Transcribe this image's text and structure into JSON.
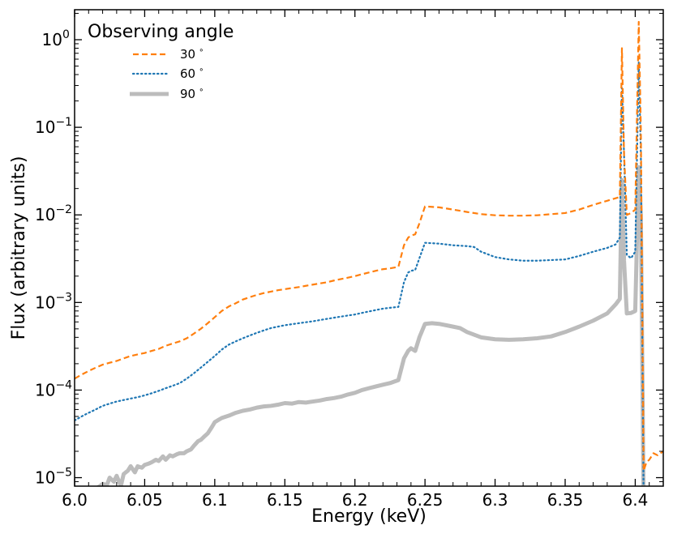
{
  "chart_data": {
    "type": "line",
    "title": "",
    "xlabel": "Energy (keV)",
    "ylabel": "Flux (arbitrary units)",
    "xlim": [
      6.0,
      6.42
    ],
    "ylim": [
      8e-06,
      2.2
    ],
    "yscale": "log",
    "grid": false,
    "x_ticks": [
      6.0,
      6.05,
      6.1,
      6.15,
      6.2,
      6.25,
      6.3,
      6.35,
      6.4
    ],
    "x_tick_labels": [
      "6.0",
      "6.05",
      "6.1",
      "6.15",
      "6.2",
      "6.25",
      "6.3",
      "6.35",
      "6.4"
    ],
    "y_ticks": [
      {
        "value": 1e-05,
        "base": "10",
        "exp": "−5"
      },
      {
        "value": 0.0001,
        "base": "10",
        "exp": "−4"
      },
      {
        "value": 0.001,
        "base": "10",
        "exp": "−3"
      },
      {
        "value": 0.01,
        "base": "10",
        "exp": "−2"
      },
      {
        "value": 0.1,
        "base": "10",
        "exp": "−1"
      },
      {
        "value": 1,
        "base": "10",
        "exp": "0"
      }
    ],
    "legend": {
      "title": "Observing angle",
      "placement": "top-left"
    },
    "series": [
      {
        "name": "30°",
        "label": "30",
        "color": "#ff7f0e",
        "style": "dashed",
        "points": [
          [
            6.0,
            0.000135
          ],
          [
            6.005,
            0.00015
          ],
          [
            6.01,
            0.000165
          ],
          [
            6.015,
            0.00018
          ],
          [
            6.02,
            0.000195
          ],
          [
            6.025,
            0.000205
          ],
          [
            6.03,
            0.000215
          ],
          [
            6.035,
            0.00023
          ],
          [
            6.04,
            0.000245
          ],
          [
            6.045,
            0.000255
          ],
          [
            6.05,
            0.000265
          ],
          [
            6.055,
            0.00028
          ],
          [
            6.06,
            0.000295
          ],
          [
            6.065,
            0.00032
          ],
          [
            6.07,
            0.00034
          ],
          [
            6.075,
            0.00036
          ],
          [
            6.08,
            0.00039
          ],
          [
            6.085,
            0.00044
          ],
          [
            6.09,
            0.0005
          ],
          [
            6.095,
            0.00058
          ],
          [
            6.1,
            0.00068
          ],
          [
            6.105,
            0.0008
          ],
          [
            6.11,
            0.0009
          ],
          [
            6.115,
            0.00098
          ],
          [
            6.12,
            0.00108
          ],
          [
            6.125,
            0.00115
          ],
          [
            6.13,
            0.00122
          ],
          [
            6.135,
            0.00128
          ],
          [
            6.14,
            0.00133
          ],
          [
            6.145,
            0.00138
          ],
          [
            6.15,
            0.00142
          ],
          [
            6.155,
            0.00146
          ],
          [
            6.16,
            0.0015
          ],
          [
            6.165,
            0.00155
          ],
          [
            6.17,
            0.0016
          ],
          [
            6.175,
            0.00165
          ],
          [
            6.18,
            0.0017
          ],
          [
            6.185,
            0.00178
          ],
          [
            6.19,
            0.00185
          ],
          [
            6.195,
            0.00192
          ],
          [
            6.2,
            0.002
          ],
          [
            6.205,
            0.0021
          ],
          [
            6.21,
            0.0022
          ],
          [
            6.215,
            0.0023
          ],
          [
            6.22,
            0.0024
          ],
          [
            6.225,
            0.00245
          ],
          [
            6.231,
            0.00255
          ],
          [
            6.235,
            0.0045
          ],
          [
            6.238,
            0.0055
          ],
          [
            6.24,
            0.0058
          ],
          [
            6.243,
            0.006
          ],
          [
            6.246,
            0.008
          ],
          [
            6.25,
            0.0125
          ],
          [
            6.26,
            0.0122
          ],
          [
            6.27,
            0.0115
          ],
          [
            6.28,
            0.0108
          ],
          [
            6.29,
            0.0102
          ],
          [
            6.3,
            0.0099
          ],
          [
            6.31,
            0.0098
          ],
          [
            6.32,
            0.0098
          ],
          [
            6.33,
            0.0099
          ],
          [
            6.34,
            0.0102
          ],
          [
            6.35,
            0.0105
          ],
          [
            6.36,
            0.0115
          ],
          [
            6.37,
            0.013
          ],
          [
            6.38,
            0.0145
          ],
          [
            6.386,
            0.0155
          ],
          [
            6.389,
            0.016
          ],
          [
            6.3905,
            0.8
          ],
          [
            6.392,
            0.05
          ],
          [
            6.394,
            0.01
          ],
          [
            6.397,
            0.0105
          ],
          [
            6.4,
            0.0115
          ],
          [
            6.4025,
            1.6
          ],
          [
            6.404,
            0.1
          ],
          [
            6.406,
            1.2e-05
          ],
          [
            6.408,
            1.5e-05
          ],
          [
            6.41,
            1.6e-05
          ],
          [
            6.413,
            1.9e-05
          ],
          [
            6.416,
            1.8e-05
          ],
          [
            6.42,
            2e-05
          ]
        ]
      },
      {
        "name": "60°",
        "label": "60",
        "color": "#1f77b4",
        "style": "dotted",
        "points": [
          [
            6.0,
            4.5e-05
          ],
          [
            6.005,
            5e-05
          ],
          [
            6.01,
            5.5e-05
          ],
          [
            6.015,
            6e-05
          ],
          [
            6.02,
            6.6e-05
          ],
          [
            6.025,
            7e-05
          ],
          [
            6.03,
            7.4e-05
          ],
          [
            6.035,
            7.7e-05
          ],
          [
            6.04,
            8e-05
          ],
          [
            6.045,
            8.3e-05
          ],
          [
            6.05,
            8.7e-05
          ],
          [
            6.055,
            9.2e-05
          ],
          [
            6.06,
            9.8e-05
          ],
          [
            6.065,
            0.000105
          ],
          [
            6.07,
            0.000112
          ],
          [
            6.075,
            0.00012
          ],
          [
            6.08,
            0.000135
          ],
          [
            6.085,
            0.000155
          ],
          [
            6.09,
            0.00018
          ],
          [
            6.095,
            0.00021
          ],
          [
            6.1,
            0.000245
          ],
          [
            6.105,
            0.00029
          ],
          [
            6.11,
            0.00033
          ],
          [
            6.115,
            0.00036
          ],
          [
            6.12,
            0.00039
          ],
          [
            6.125,
            0.00042
          ],
          [
            6.13,
            0.00045
          ],
          [
            6.135,
            0.00048
          ],
          [
            6.14,
            0.00051
          ],
          [
            6.145,
            0.00053
          ],
          [
            6.15,
            0.00055
          ],
          [
            6.155,
            0.000565
          ],
          [
            6.16,
            0.00058
          ],
          [
            6.165,
            0.000595
          ],
          [
            6.17,
            0.00061
          ],
          [
            6.175,
            0.00063
          ],
          [
            6.18,
            0.00065
          ],
          [
            6.185,
            0.00067
          ],
          [
            6.19,
            0.00069
          ],
          [
            6.195,
            0.00071
          ],
          [
            6.2,
            0.00073
          ],
          [
            6.205,
            0.00076
          ],
          [
            6.21,
            0.00079
          ],
          [
            6.215,
            0.00082
          ],
          [
            6.22,
            0.00085
          ],
          [
            6.225,
            0.00087
          ],
          [
            6.231,
            0.00089
          ],
          [
            6.235,
            0.0017
          ],
          [
            6.238,
            0.0022
          ],
          [
            6.24,
            0.0023
          ],
          [
            6.243,
            0.00235
          ],
          [
            6.246,
            0.0032
          ],
          [
            6.25,
            0.0048
          ],
          [
            6.26,
            0.0047
          ],
          [
            6.27,
            0.0045
          ],
          [
            6.28,
            0.0044
          ],
          [
            6.285,
            0.0043
          ],
          [
            6.29,
            0.0038
          ],
          [
            6.3,
            0.0033
          ],
          [
            6.31,
            0.0031
          ],
          [
            6.32,
            0.003
          ],
          [
            6.33,
            0.003
          ],
          [
            6.34,
            0.00305
          ],
          [
            6.35,
            0.0031
          ],
          [
            6.36,
            0.0034
          ],
          [
            6.37,
            0.0038
          ],
          [
            6.38,
            0.0042
          ],
          [
            6.386,
            0.0046
          ],
          [
            6.389,
            0.0055
          ],
          [
            6.3905,
            0.28
          ],
          [
            6.392,
            0.05
          ],
          [
            6.394,
            0.0035
          ],
          [
            6.397,
            0.0032
          ],
          [
            6.4,
            0.0038
          ],
          [
            6.4025,
            0.55
          ],
          [
            6.404,
            0.05
          ],
          [
            6.406,
            5e-06
          ]
        ]
      },
      {
        "name": "90°",
        "label": "90",
        "color": "#bcbcbc",
        "style": "solid-thick",
        "points": [
          [
            6.015,
            7.5e-06
          ],
          [
            6.018,
            8e-06
          ],
          [
            6.02,
            8.5e-06
          ],
          [
            6.023,
            8.2e-06
          ],
          [
            6.025,
            1e-05
          ],
          [
            6.028,
            9e-06
          ],
          [
            6.03,
            1.05e-05
          ],
          [
            6.033,
            8e-06
          ],
          [
            6.035,
            1.1e-05
          ],
          [
            6.038,
            1.2e-05
          ],
          [
            6.04,
            1.35e-05
          ],
          [
            6.043,
            1.15e-05
          ],
          [
            6.045,
            1.35e-05
          ],
          [
            6.048,
            1.3e-05
          ],
          [
            6.05,
            1.4e-05
          ],
          [
            6.053,
            1.45e-05
          ],
          [
            6.055,
            1.5e-05
          ],
          [
            6.058,
            1.6e-05
          ],
          [
            6.06,
            1.55e-05
          ],
          [
            6.063,
            1.75e-05
          ],
          [
            6.065,
            1.6e-05
          ],
          [
            6.068,
            1.8e-05
          ],
          [
            6.07,
            1.75e-05
          ],
          [
            6.073,
            1.85e-05
          ],
          [
            6.075,
            1.9e-05
          ],
          [
            6.078,
            1.9e-05
          ],
          [
            6.08,
            2e-05
          ],
          [
            6.083,
            2.1e-05
          ],
          [
            6.085,
            2.3e-05
          ],
          [
            6.088,
            2.6e-05
          ],
          [
            6.09,
            2.7e-05
          ],
          [
            6.093,
            3e-05
          ],
          [
            6.095,
            3.2e-05
          ],
          [
            6.098,
            3.8e-05
          ],
          [
            6.1,
            4.3e-05
          ],
          [
            6.103,
            4.6e-05
          ],
          [
            6.105,
            4.8e-05
          ],
          [
            6.11,
            5.1e-05
          ],
          [
            6.115,
            5.5e-05
          ],
          [
            6.12,
            5.8e-05
          ],
          [
            6.125,
            6e-05
          ],
          [
            6.13,
            6.3e-05
          ],
          [
            6.135,
            6.5e-05
          ],
          [
            6.14,
            6.6e-05
          ],
          [
            6.145,
            6.8e-05
          ],
          [
            6.15,
            7.1e-05
          ],
          [
            6.155,
            7e-05
          ],
          [
            6.16,
            7.3e-05
          ],
          [
            6.165,
            7.2e-05
          ],
          [
            6.17,
            7.4e-05
          ],
          [
            6.175,
            7.6e-05
          ],
          [
            6.18,
            7.9e-05
          ],
          [
            6.185,
            8.1e-05
          ],
          [
            6.19,
            8.4e-05
          ],
          [
            6.195,
            8.9e-05
          ],
          [
            6.2,
            9.3e-05
          ],
          [
            6.205,
            0.0001
          ],
          [
            6.21,
            0.000105
          ],
          [
            6.215,
            0.00011
          ],
          [
            6.22,
            0.000115
          ],
          [
            6.225,
            0.00012
          ],
          [
            6.231,
            0.00013
          ],
          [
            6.235,
            0.00023
          ],
          [
            6.238,
            0.00028
          ],
          [
            6.24,
            0.0003
          ],
          [
            6.243,
            0.00028
          ],
          [
            6.246,
            0.0004
          ],
          [
            6.25,
            0.00057
          ],
          [
            6.255,
            0.00058
          ],
          [
            6.26,
            0.00057
          ],
          [
            6.265,
            0.00055
          ],
          [
            6.27,
            0.00053
          ],
          [
            6.275,
            0.00051
          ],
          [
            6.28,
            0.00046
          ],
          [
            6.29,
            0.0004
          ],
          [
            6.3,
            0.00038
          ],
          [
            6.31,
            0.000375
          ],
          [
            6.32,
            0.00038
          ],
          [
            6.33,
            0.00039
          ],
          [
            6.34,
            0.00041
          ],
          [
            6.35,
            0.00046
          ],
          [
            6.36,
            0.00053
          ],
          [
            6.37,
            0.00062
          ],
          [
            6.38,
            0.00075
          ],
          [
            6.386,
            0.00095
          ],
          [
            6.389,
            0.0011
          ],
          [
            6.3905,
            0.025
          ],
          [
            6.392,
            0.003
          ],
          [
            6.394,
            0.00075
          ],
          [
            6.397,
            0.00076
          ],
          [
            6.4,
            0.0008
          ],
          [
            6.4025,
            0.035
          ],
          [
            6.404,
            0.01
          ],
          [
            6.406,
            5e-06
          ]
        ]
      }
    ]
  }
}
